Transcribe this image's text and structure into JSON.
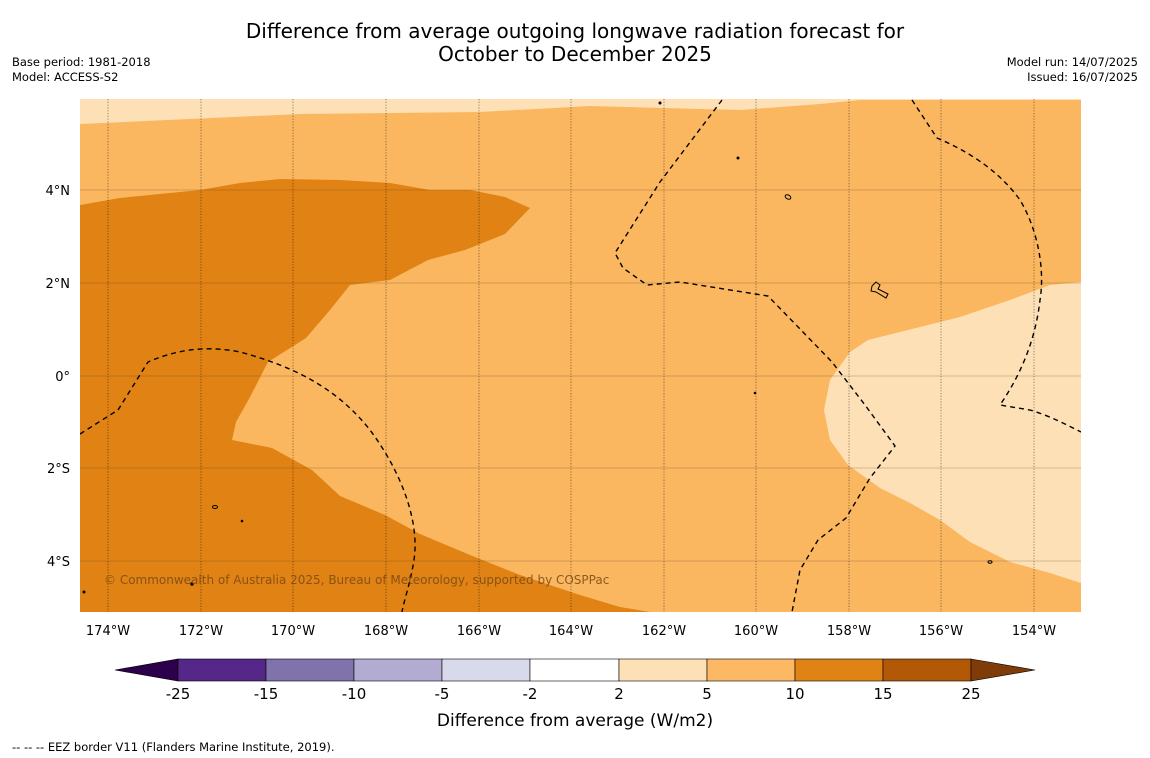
{
  "title": {
    "line1": "Difference from average outgoing longwave radiation forecast for",
    "line2": "October to December 2025"
  },
  "meta_left": {
    "base_period": "Base period: 1981-2018",
    "model": "Model: ACCESS-S2"
  },
  "meta_right": {
    "model_run": "Model run: 14/07/2025",
    "issued": "Issued: 16/07/2025"
  },
  "map": {
    "lat_labels": [
      "4°N",
      "2°N",
      "0°",
      "2°S",
      "4°S"
    ],
    "lon_labels": [
      "174°W",
      "172°W",
      "170°W",
      "168°W",
      "166°W",
      "164°W",
      "162°W",
      "160°W",
      "158°W",
      "156°W",
      "154°W"
    ],
    "copyright": "© Commonwealth of Australia 2025, Bureau of Meteorology, supported by COSPPac",
    "colors": {
      "band_2_5": "#fde0b6",
      "band_5_10": "#fab760",
      "band_10_15": "#e08214"
    }
  },
  "colorbar": {
    "ticks": [
      "-25",
      "-15",
      "-10",
      "-5",
      "-2",
      "2",
      "5",
      "10",
      "15",
      "25"
    ],
    "colors": [
      "#2d004b",
      "#542788",
      "#8073ac",
      "#b2abd2",
      "#d8daeb",
      "#ffffff",
      "#fee0b6",
      "#fdb863",
      "#e08214",
      "#b35806",
      "#7f3b08"
    ],
    "label": "Difference from average (W/m2)"
  },
  "footnote": "--  --  -- EEZ border V11 (Flanders Marine Institute, 2019)."
}
